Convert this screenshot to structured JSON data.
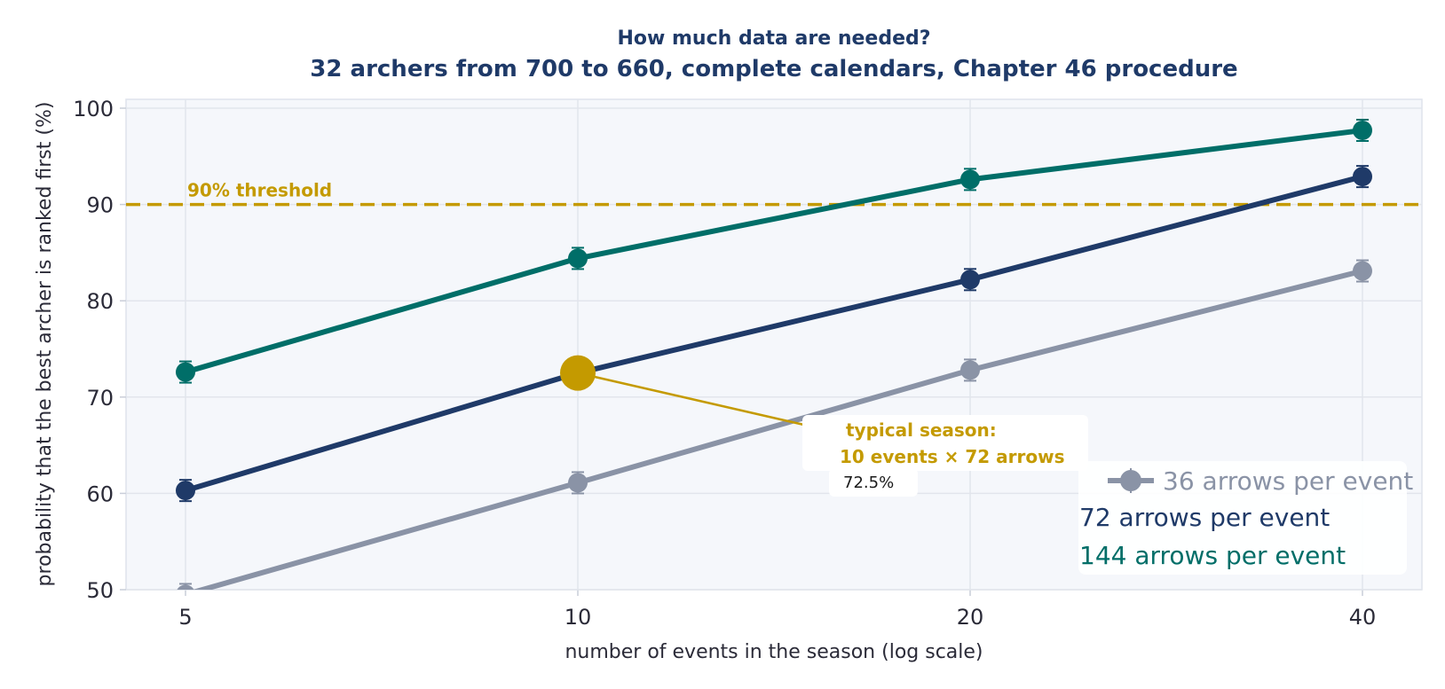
{
  "chart_data": {
    "type": "line",
    "title": "How much data are needed?",
    "subtitle": "32 archers from 700 to 660, complete calendars, Chapter 46 procedure",
    "xlabel": "number of events in the season (log scale)",
    "ylabel": "probability that the best archer is ranked first (%)",
    "x_scale": "log",
    "x": [
      5,
      10,
      20,
      40
    ],
    "x_ticks": [
      "5",
      "10",
      "20",
      "40"
    ],
    "ylim": [
      50,
      100
    ],
    "y_ticks": [
      "50",
      "60",
      "70",
      "80",
      "90",
      "100"
    ],
    "grid": true,
    "series": [
      {
        "name": "36 arrows per event",
        "color": "#8a93a6",
        "values": [
          49.5,
          61.1,
          72.8,
          83.1
        ]
      },
      {
        "name": "72 arrows per event",
        "color": "#1f3a68",
        "values": [
          60.3,
          72.5,
          82.2,
          92.9
        ]
      },
      {
        "name": "144 arrows per event",
        "color": "#006e68",
        "values": [
          72.6,
          84.4,
          92.6,
          97.7
        ]
      }
    ],
    "threshold": {
      "value": 90,
      "label": "90% threshold",
      "color": "#c49a00"
    },
    "annotation": {
      "x": 10,
      "y": 72.5,
      "line1": "typical season:",
      "line2": "10 events × 72 arrows",
      "value_label": "72.5%",
      "color": "#c49a00"
    },
    "legend_position": "bottom-right"
  }
}
